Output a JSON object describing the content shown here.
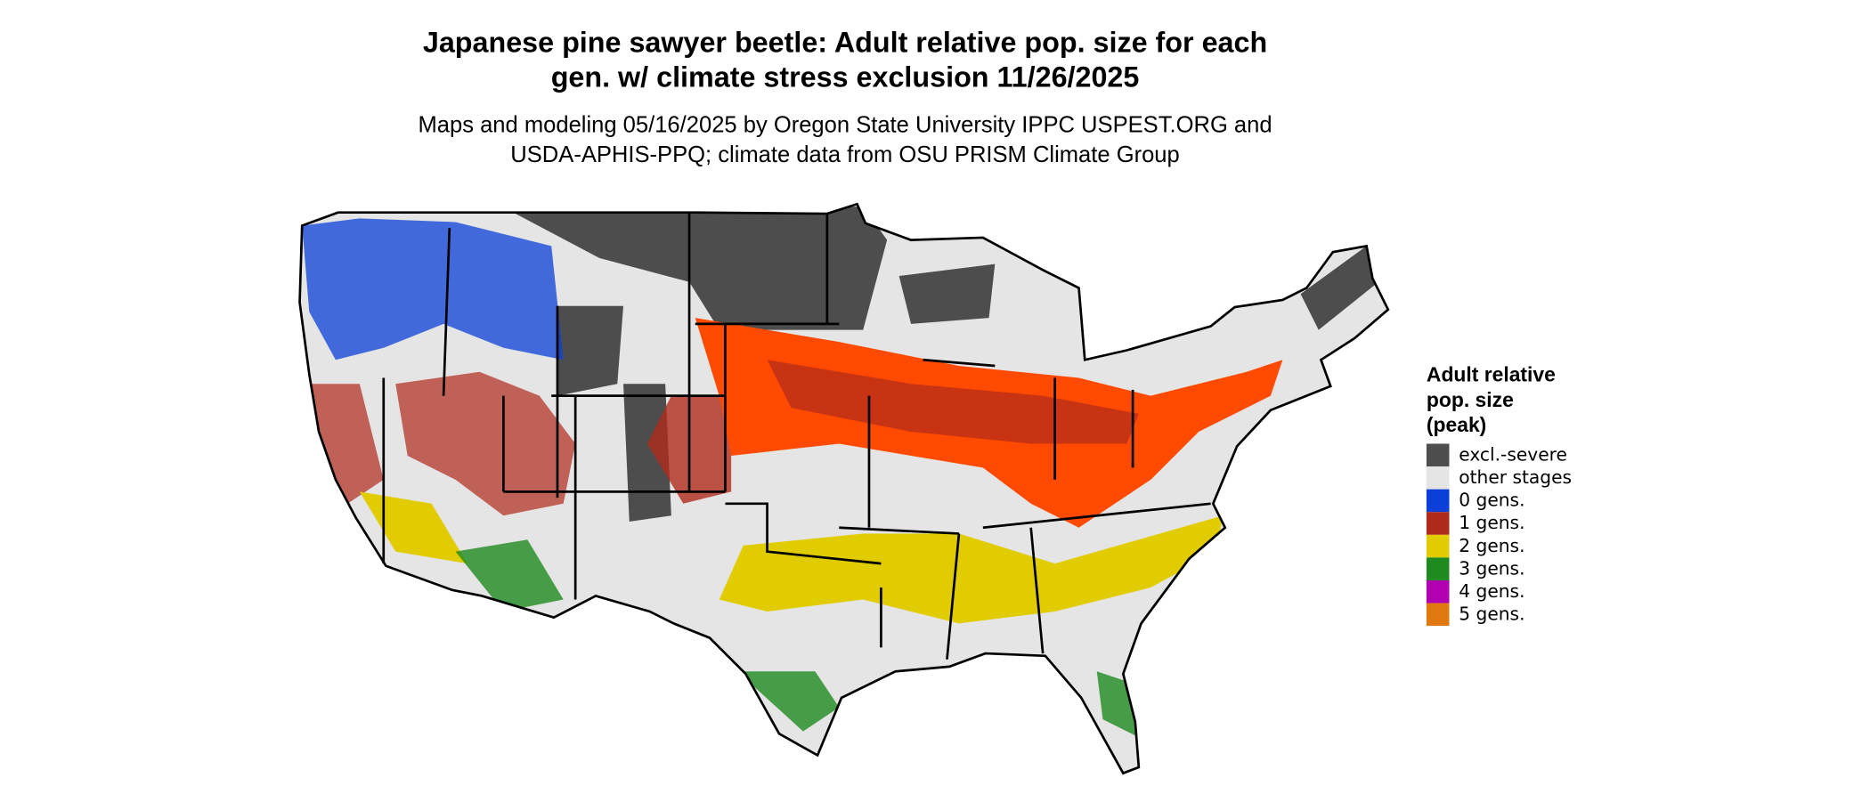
{
  "header": {
    "title_lines": [
      "Japanese pine sawyer beetle: Adult relative pop. size for each",
      "gen. w/ climate stress exclusion 11/26/2025"
    ],
    "subtitle_lines": [
      "Maps and modeling 05/16/2025 by Oregon State University IPPC USPEST.ORG and",
      "USDA-APHIS-PPQ; climate data from OSU PRISM Climate Group"
    ]
  },
  "legend": {
    "title_lines": [
      "Adult relative",
      "pop. size",
      "(peak)"
    ],
    "items": [
      {
        "label": "excl.-severe",
        "color": "#4d4d4d"
      },
      {
        "label": "other stages",
        "color": "#e5e5e5"
      },
      {
        "label": "0 gens.",
        "color": "#0a3fd8"
      },
      {
        "label": "1 gens.",
        "color": "#b02a1c"
      },
      {
        "label": "2 gens.",
        "color": "#e0cc00"
      },
      {
        "label": "3 gens.",
        "color": "#1f8a1f"
      },
      {
        "label": "4 gens.",
        "color": "#b000b0"
      },
      {
        "label": "5 gens.",
        "color": "#e07a10"
      }
    ]
  }
}
